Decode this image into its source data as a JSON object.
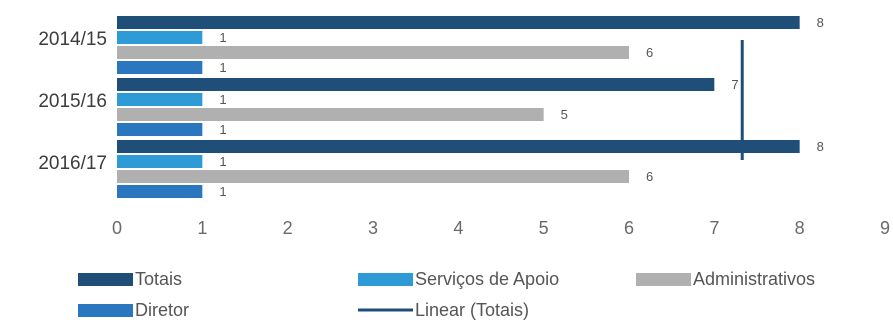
{
  "chart_data": {
    "type": "bar",
    "orientation": "horizontal",
    "categories": [
      "2014/15",
      "2015/16",
      "2016/17"
    ],
    "series": [
      {
        "name": "Totais",
        "values": [
          8,
          7,
          8
        ],
        "color": "#1f4e79"
      },
      {
        "name": "Serviços de Apoio",
        "values": [
          1,
          1,
          1
        ],
        "color": "#2e9bd6"
      },
      {
        "name": "Administrativos",
        "values": [
          6,
          5,
          6
        ],
        "color": "#b0b0b0"
      },
      {
        "name": "Diretor",
        "values": [
          1,
          1,
          1
        ],
        "color": "#2a77c0"
      }
    ],
    "trendline": {
      "name": "Linear (Totais)",
      "type": "linear",
      "of_series": "Totais",
      "color": "#1f4e79"
    },
    "xlim": [
      0,
      9
    ],
    "x_ticks": [
      0,
      1,
      2,
      3,
      4,
      5,
      6,
      7,
      8,
      9
    ],
    "grid": false,
    "legend_position": "bottom",
    "data_labels": true
  }
}
